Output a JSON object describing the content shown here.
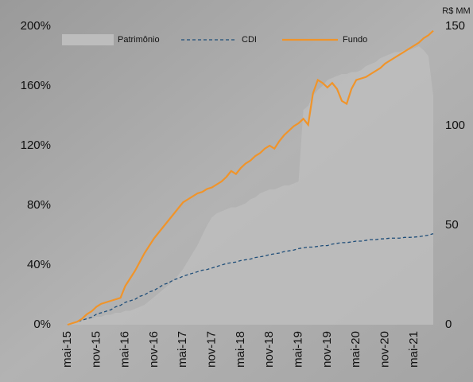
{
  "chart_data": {
    "type": "line",
    "y2_label": "R$ MM",
    "categories": [
      "mai-15",
      null,
      null,
      null,
      null,
      null,
      "nov-15",
      null,
      null,
      null,
      null,
      null,
      "mai-16",
      null,
      null,
      null,
      null,
      null,
      "nov-16",
      null,
      null,
      null,
      null,
      null,
      "mai-17",
      null,
      null,
      null,
      null,
      null,
      "nov-17",
      null,
      null,
      null,
      null,
      null,
      "mai-18",
      null,
      null,
      null,
      null,
      null,
      "nov-18",
      null,
      null,
      null,
      null,
      null,
      "mai-19",
      null,
      null,
      null,
      null,
      null,
      "nov-19",
      null,
      null,
      null,
      null,
      null,
      "mai-20",
      null,
      null,
      null,
      null,
      null,
      "nov-20",
      null,
      null,
      null,
      null,
      null,
      "mai-21",
      null,
      null,
      null,
      null
    ],
    "ylim": [
      0,
      200
    ],
    "yticks": [
      {
        "value": 0,
        "label": "0%"
      },
      {
        "value": 40,
        "label": "40%"
      },
      {
        "value": 80,
        "label": "80%"
      },
      {
        "value": 120,
        "label": "120%"
      },
      {
        "value": 160,
        "label": "160%"
      },
      {
        "value": 200,
        "label": "200%"
      }
    ],
    "y2lim": [
      0,
      150
    ],
    "y2ticks": [
      0,
      50,
      100,
      150
    ],
    "legend": "top",
    "series": [
      {
        "name": "Patrimônio",
        "kind": "area",
        "axis": "y2",
        "color": "#bdbdbd",
        "values": [
          1,
          1,
          2,
          2,
          3,
          3,
          4,
          4,
          5,
          5,
          6,
          6,
          7,
          7,
          8,
          9,
          10,
          12,
          14,
          16,
          18,
          20,
          22,
          25,
          28,
          32,
          36,
          40,
          45,
          50,
          54,
          56,
          57,
          58,
          59,
          59,
          60,
          61,
          63,
          64,
          66,
          67,
          68,
          68,
          69,
          70,
          70,
          71,
          72,
          108,
          110,
          115,
          118,
          120,
          123,
          124,
          125,
          126,
          126,
          127,
          127,
          128,
          130,
          131,
          132,
          134,
          135,
          136,
          137,
          137,
          138,
          138,
          139,
          140,
          138,
          135,
          115
        ]
      },
      {
        "name": "CDI",
        "kind": "dashed",
        "color": "#1f4e79",
        "values": [
          0,
          1,
          2,
          3,
          4,
          5,
          7,
          8,
          9,
          10,
          12,
          13,
          15,
          16,
          17,
          19,
          20,
          22,
          23,
          25,
          27,
          28,
          30,
          31,
          32.5,
          33.5,
          34.5,
          35.5,
          36.5,
          37,
          38,
          39,
          40,
          41,
          41.5,
          42,
          43,
          43.5,
          44,
          45,
          45.5,
          46,
          47,
          47.5,
          48,
          49,
          49.5,
          50,
          51,
          51.5,
          52,
          52,
          52.5,
          53,
          53,
          54,
          54.5,
          55,
          55,
          55.5,
          56,
          56,
          56.5,
          57,
          57,
          57.5,
          57.6,
          58,
          58,
          58,
          58.5,
          58.5,
          58.7,
          59,
          59.5,
          60,
          61
        ]
      },
      {
        "name": "Fundo",
        "kind": "solid",
        "color": "#f0942a",
        "values": [
          0,
          1,
          2,
          4,
          7,
          9,
          12,
          14,
          15,
          16,
          17,
          18,
          26,
          31,
          36,
          42,
          48,
          53,
          58,
          62,
          66,
          70,
          74,
          78,
          82,
          84,
          86,
          88,
          89,
          91,
          92,
          94,
          96,
          99,
          103,
          101,
          105,
          108,
          110,
          113,
          115,
          118,
          120,
          118,
          123,
          127,
          130,
          133,
          135,
          138,
          134,
          155,
          164,
          162,
          159,
          162,
          158,
          150,
          148,
          158,
          164,
          165,
          166,
          168,
          170,
          172,
          175,
          177,
          179,
          181,
          183,
          185,
          187,
          189,
          192,
          194,
          197
        ]
      }
    ]
  }
}
